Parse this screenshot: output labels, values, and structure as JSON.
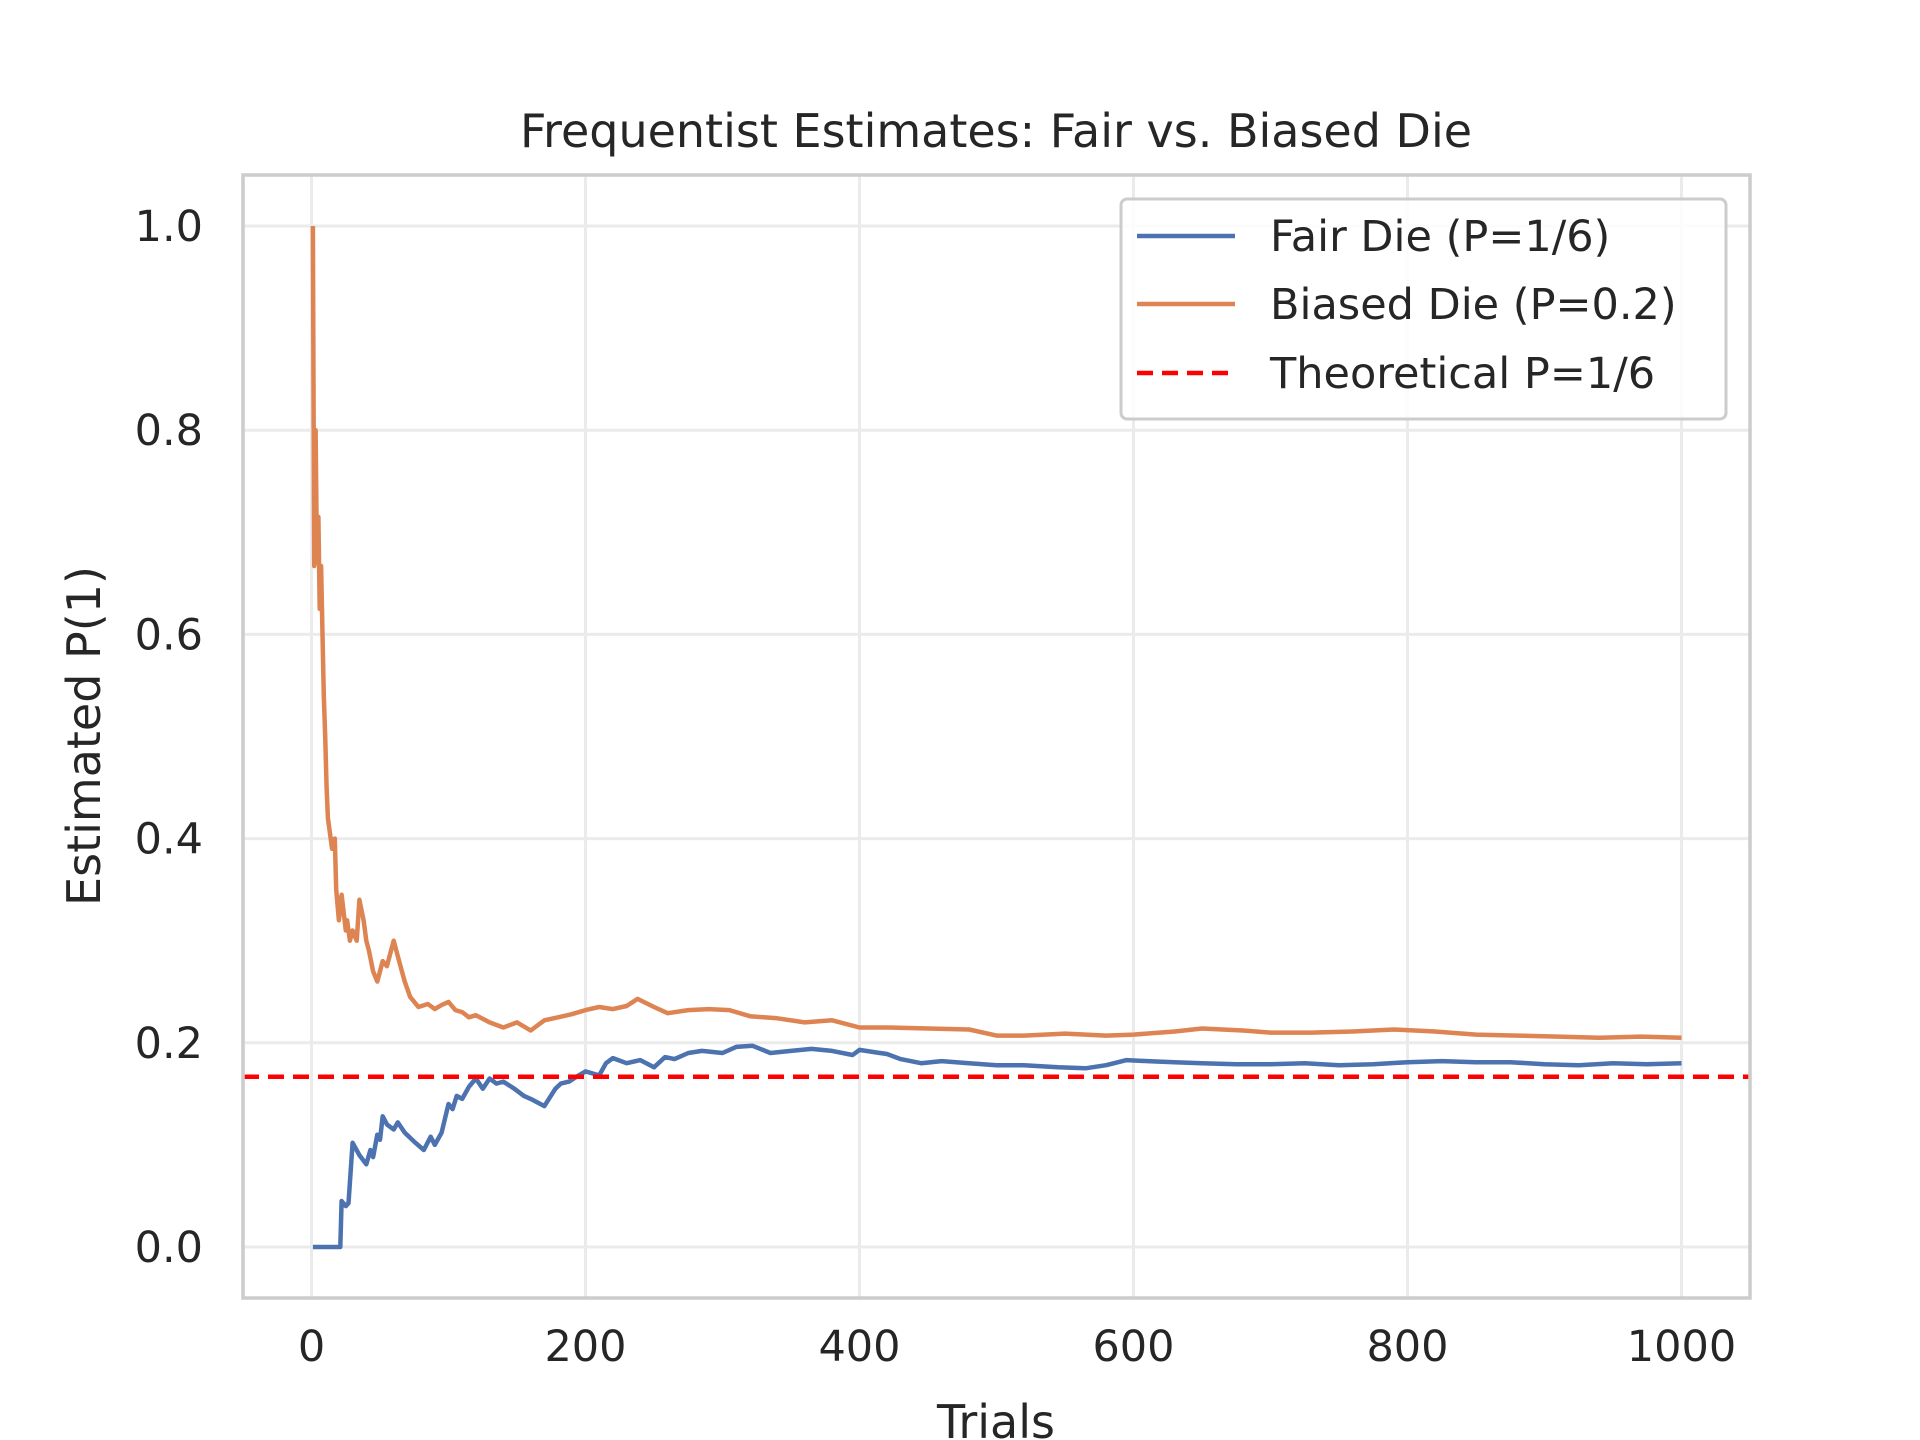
{
  "chart_data": {
    "type": "line",
    "title": "Frequentist Estimates: Fair vs. Biased Die",
    "xlabel": "Trials",
    "ylabel": "Estimated P(1)",
    "xlim": [
      -50,
      1050
    ],
    "ylim": [
      -0.05,
      1.05
    ],
    "xticks": [
      "0",
      "200",
      "400",
      "600",
      "800",
      "1000"
    ],
    "yticks": [
      "0.0",
      "0.2",
      "0.4",
      "0.6",
      "0.8",
      "1.0"
    ],
    "grid": true,
    "legend_position": "top-right",
    "colors": {
      "fair": "#4c72b0",
      "biased": "#dd8452",
      "theoretical": "#ff0000"
    },
    "series": [
      {
        "name": "Fair Die (P=1/6)",
        "style": "solid",
        "x": [
          1,
          10,
          21,
          22,
          25,
          27,
          30,
          35,
          40,
          43,
          45,
          48,
          50,
          52,
          55,
          60,
          63,
          68,
          75,
          82,
          87,
          90,
          95,
          100,
          103,
          106,
          110,
          115,
          120,
          125,
          130,
          135,
          140,
          148,
          155,
          160,
          170,
          178,
          182,
          188,
          195,
          200,
          210,
          215,
          220,
          230,
          240,
          250,
          258,
          265,
          275,
          285,
          300,
          310,
          322,
          335,
          350,
          365,
          380,
          395,
          400,
          410,
          420,
          430,
          445,
          460,
          480,
          500,
          520,
          545,
          565,
          580,
          595,
          610,
          630,
          650,
          675,
          700,
          725,
          750,
          775,
          800,
          825,
          850,
          875,
          900,
          925,
          950,
          975,
          1000
        ],
        "y": [
          0.0,
          0.0,
          0.0,
          0.045,
          0.04,
          0.043,
          0.102,
          0.09,
          0.081,
          0.095,
          0.088,
          0.11,
          0.105,
          0.128,
          0.12,
          0.115,
          0.122,
          0.112,
          0.103,
          0.095,
          0.108,
          0.1,
          0.112,
          0.14,
          0.135,
          0.148,
          0.145,
          0.157,
          0.165,
          0.155,
          0.165,
          0.16,
          0.162,
          0.155,
          0.148,
          0.145,
          0.138,
          0.155,
          0.16,
          0.162,
          0.168,
          0.172,
          0.168,
          0.18,
          0.185,
          0.18,
          0.183,
          0.176,
          0.186,
          0.184,
          0.19,
          0.192,
          0.19,
          0.196,
          0.197,
          0.19,
          0.192,
          0.194,
          0.192,
          0.188,
          0.193,
          0.191,
          0.189,
          0.184,
          0.18,
          0.182,
          0.18,
          0.178,
          0.178,
          0.176,
          0.175,
          0.178,
          0.183,
          0.182,
          0.181,
          0.18,
          0.179,
          0.179,
          0.18,
          0.178,
          0.179,
          0.181,
          0.182,
          0.181,
          0.181,
          0.179,
          0.178,
          0.18,
          0.179,
          0.18
        ]
      },
      {
        "name": "Biased Die (P=0.2)",
        "style": "solid",
        "x": [
          1,
          2,
          3,
          4,
          5,
          6,
          7,
          8,
          9,
          10,
          11,
          12,
          15,
          17,
          18,
          20,
          22,
          25,
          26,
          28,
          30,
          33,
          35,
          38,
          40,
          42,
          45,
          48,
          52,
          55,
          57,
          60,
          62,
          65,
          68,
          72,
          78,
          85,
          90,
          95,
          100,
          105,
          110,
          115,
          120,
          130,
          140,
          150,
          160,
          170,
          180,
          190,
          200,
          210,
          220,
          230,
          238,
          250,
          260,
          275,
          290,
          305,
          320,
          340,
          360,
          380,
          400,
          420,
          450,
          480,
          500,
          520,
          550,
          580,
          600,
          630,
          650,
          680,
          700,
          730,
          760,
          790,
          820,
          850,
          880,
          910,
          940,
          970,
          1000
        ],
        "y": [
          1.0,
          0.667,
          0.8,
          0.67,
          0.715,
          0.625,
          0.667,
          0.6,
          0.54,
          0.5,
          0.45,
          0.42,
          0.39,
          0.4,
          0.35,
          0.32,
          0.345,
          0.31,
          0.32,
          0.3,
          0.31,
          0.3,
          0.34,
          0.32,
          0.3,
          0.29,
          0.27,
          0.26,
          0.28,
          0.275,
          0.285,
          0.3,
          0.29,
          0.275,
          0.26,
          0.245,
          0.235,
          0.238,
          0.233,
          0.237,
          0.24,
          0.232,
          0.23,
          0.225,
          0.227,
          0.22,
          0.215,
          0.22,
          0.212,
          0.222,
          0.225,
          0.228,
          0.232,
          0.235,
          0.233,
          0.236,
          0.243,
          0.235,
          0.229,
          0.232,
          0.233,
          0.232,
          0.226,
          0.224,
          0.22,
          0.222,
          0.215,
          0.215,
          0.214,
          0.213,
          0.207,
          0.207,
          0.209,
          0.207,
          0.208,
          0.211,
          0.214,
          0.212,
          0.21,
          0.21,
          0.211,
          0.213,
          0.211,
          0.208,
          0.207,
          0.206,
          0.205,
          0.206,
          0.205
        ]
      },
      {
        "name": "Theoretical P=1/6",
        "style": "dashed",
        "y_constant": 0.1667
      }
    ]
  }
}
